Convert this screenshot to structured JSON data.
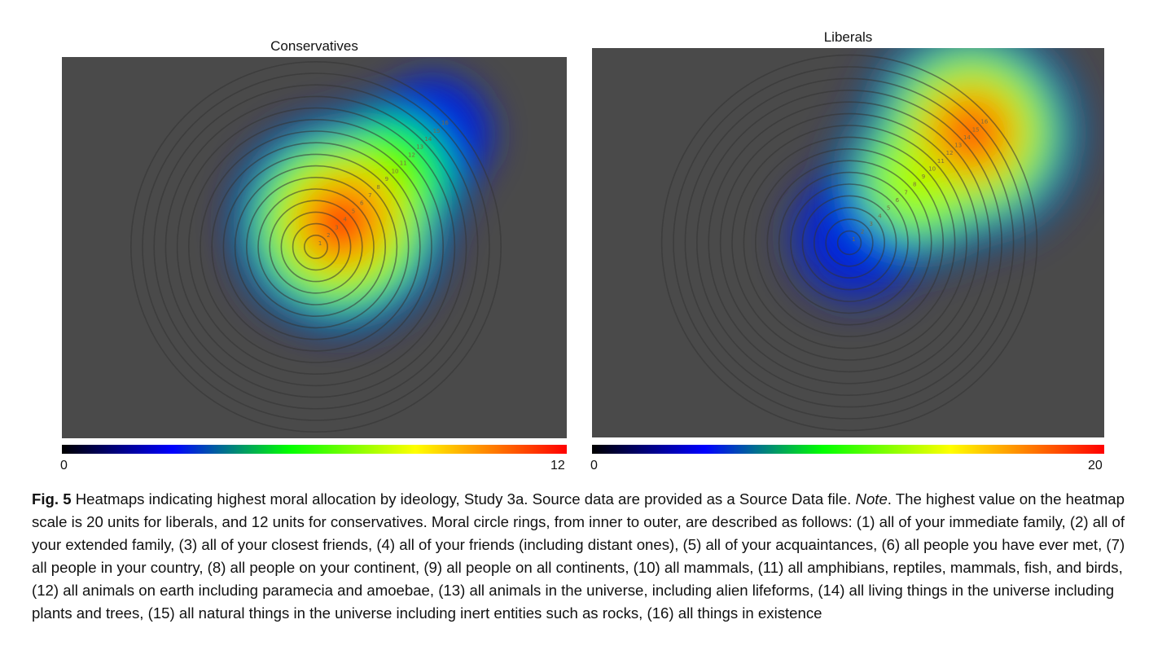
{
  "chart_data": [
    {
      "type": "heatmap",
      "title": "Conservatives",
      "colorbar": {
        "min_label": "0",
        "max_label": "12",
        "min": 0,
        "max": 12
      },
      "colormap": [
        "#000000",
        "#0000ff",
        "#00ff00",
        "#ffff00",
        "#ff0000"
      ],
      "ring_labels": [
        "1",
        "2",
        "3",
        "4",
        "5",
        "6",
        "7",
        "8",
        "9",
        "10",
        "11",
        "12",
        "13",
        "14",
        "15",
        "16"
      ],
      "hotspots": [
        {
          "ring": 3,
          "value": 12
        },
        {
          "ring": 5,
          "value": 10
        },
        {
          "ring": 9,
          "value": 7
        },
        {
          "ring": 14,
          "value": 4
        }
      ]
    },
    {
      "type": "heatmap",
      "title": "Liberals",
      "colorbar": {
        "min_label": "0",
        "max_label": "20",
        "min": 0,
        "max": 20
      },
      "colormap": [
        "#000000",
        "#0000ff",
        "#00ff00",
        "#ffff00",
        "#ff0000"
      ],
      "ring_labels": [
        "1",
        "2",
        "3",
        "4",
        "5",
        "6",
        "7",
        "8",
        "9",
        "10",
        "11",
        "12",
        "13",
        "14",
        "15",
        "16"
      ],
      "hotspots": [
        {
          "ring": 1,
          "value": 8
        },
        {
          "ring": 8,
          "value": 13
        },
        {
          "ring": 14,
          "value": 20
        }
      ]
    }
  ],
  "caption": {
    "label": "Fig. 5",
    "text_a": " Heatmaps indicating highest moral allocation by ideology, Study 3a. Source data are provided as a Source Data file. ",
    "note": "Note",
    "text_b": ". The highest value on the heatmap scale is 20 units for liberals, and 12 units for conservatives. Moral circle rings, from inner to outer, are described as follows: (1) all of your immediate family, (2) all of your extended family, (3) all of your closest friends, (4) all of your friends (including distant ones), (5) all of your acquaintances, (6) all people you have ever met, (7) all people in your country, (8) all people on your continent, (9) all people on all continents, (10) all mammals, (11) all amphibians, reptiles, mammals, fish, and birds, (12) all animals on earth including paramecia and amoebae, (13) all animals in the universe, including alien lifeforms, (14) all living things in the universe including plants and trees, (15) all natural things in the universe including inert entities such as rocks, (16) all things in existence"
  }
}
